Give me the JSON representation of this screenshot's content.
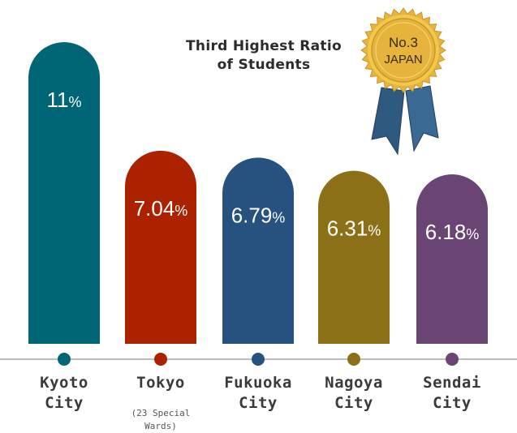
{
  "chart_data": {
    "type": "bar",
    "title": "Third Highest Ratio\nof Students",
    "categories": [
      "Kyoto City",
      "Tokyo",
      "Fukuoka City",
      "Nagoya City",
      "Sendai City"
    ],
    "category_notes": [
      "",
      "(23 Special Wards)",
      "",
      "",
      ""
    ],
    "values": [
      11,
      7.04,
      6.79,
      6.31,
      6.18
    ],
    "value_labels": [
      "11",
      "7.04",
      "6.79",
      "6.31",
      "6.18"
    ],
    "unit": "%",
    "colors": [
      "#006575",
      "#aa2200",
      "#27527f",
      "#8c7018",
      "#6a4472"
    ],
    "grid": false,
    "legend": "none"
  },
  "title_line1": "Third Highest Ratio",
  "title_line2": "of Students",
  "cities": [
    {
      "line1": "Kyoto",
      "line2": "City"
    },
    {
      "line1": "Tokyo",
      "line2": ""
    },
    {
      "line1": "Fukuoka",
      "line2": "City"
    },
    {
      "line1": "Nagoya",
      "line2": "City"
    },
    {
      "line1": "Sendai",
      "line2": "City"
    }
  ],
  "tokyo_note_line1": "(23 Special",
  "tokyo_note_line2": "Wards)",
  "badge": {
    "line1": "No.3",
    "line2": "JAPAN",
    "gold": "#e6b43c",
    "ribbon": "#2f5a80"
  }
}
